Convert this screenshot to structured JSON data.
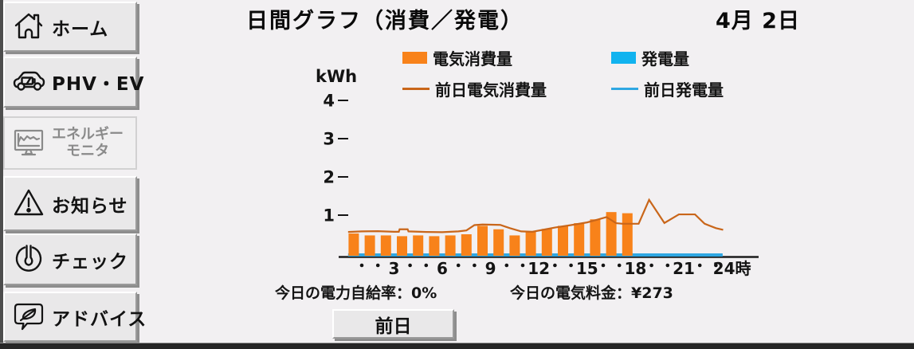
{
  "header": {
    "title": "日間グラフ（消費／発電）",
    "date": "4月 2日"
  },
  "sidebar": {
    "items": [
      {
        "label": "ホーム",
        "icon": "home-icon",
        "selected": false
      },
      {
        "label": "PHV・EV",
        "icon": "phv-ev-car-icon",
        "selected": false
      },
      {
        "label": "エネルギー",
        "label2": "モニタ",
        "icon": "energy-monitor-icon",
        "selected": true
      },
      {
        "label": "お知らせ",
        "icon": "notice-alert-icon",
        "selected": false
      },
      {
        "label": "チェック",
        "icon": "check-gauge-icon",
        "selected": false
      },
      {
        "label": "アドバイス",
        "icon": "advice-leaf-icon",
        "selected": false
      }
    ]
  },
  "stats": {
    "self_sufficiency_label": "今日の電力自給率：",
    "self_sufficiency_value": "0%",
    "electricity_cost_label": "今日の電気料金：",
    "electricity_cost_value": "¥273"
  },
  "controls": {
    "previous_day": "前日"
  },
  "chart_data": {
    "type": "bar+line",
    "title": "日間グラフ（消費／発電）",
    "ylabel": "kWh",
    "ylim": [
      0,
      4.5
    ],
    "yticks": [
      1,
      2,
      3,
      4
    ],
    "xrange": [
      0,
      24
    ],
    "xticks": [
      3,
      6,
      9,
      12,
      15,
      18,
      21,
      24
    ],
    "xtick_suffix": "時",
    "legend_position": "top",
    "grid": false,
    "series": [
      {
        "name": "電気消費量",
        "type": "bar",
        "color": "#F8821A",
        "hours": [
          1,
          2,
          3,
          4,
          5,
          6,
          7,
          8,
          9,
          10,
          11,
          12,
          13,
          14,
          15,
          16,
          17,
          18
        ],
        "values": [
          0.52,
          0.47,
          0.47,
          0.45,
          0.47,
          0.45,
          0.47,
          0.5,
          0.72,
          0.63,
          0.47,
          0.57,
          0.64,
          0.72,
          0.79,
          0.89,
          1.08,
          1.05
        ]
      },
      {
        "name": "発電量",
        "type": "bar",
        "color": "#11B3EF",
        "hours": [
          1,
          2,
          3,
          4,
          5,
          6,
          7,
          8,
          9,
          10,
          11,
          12,
          13,
          14,
          15,
          16,
          17,
          18
        ],
        "values": [
          0,
          0,
          0,
          0,
          0,
          0,
          0,
          0,
          0,
          0,
          0,
          0,
          0,
          0,
          0,
          0,
          0,
          0
        ]
      },
      {
        "name": "前日電気消費量",
        "type": "line",
        "color": "#C9661A",
        "points": [
          [
            0.15,
            0.56
          ],
          [
            1,
            0.575
          ],
          [
            2,
            0.58
          ],
          [
            3,
            0.565
          ],
          [
            3.3,
            0.565
          ],
          [
            3.35,
            0.63
          ],
          [
            3.85,
            0.63
          ],
          [
            3.9,
            0.575
          ],
          [
            5,
            0.56
          ],
          [
            6,
            0.555
          ],
          [
            7,
            0.575
          ],
          [
            7.5,
            0.6
          ],
          [
            8,
            0.74
          ],
          [
            8.5,
            0.755
          ],
          [
            9.6,
            0.745
          ],
          [
            10.2,
            0.66
          ],
          [
            10.9,
            0.575
          ],
          [
            11.6,
            0.565
          ],
          [
            12.3,
            0.62
          ],
          [
            13,
            0.675
          ],
          [
            14,
            0.74
          ],
          [
            15,
            0.81
          ],
          [
            15.7,
            0.89
          ],
          [
            16.2,
            0.95
          ],
          [
            16.8,
            0.79
          ],
          [
            17.2,
            0.775
          ],
          [
            18.2,
            0.775
          ],
          [
            18.85,
            1.4
          ],
          [
            19.8,
            0.795
          ],
          [
            20.7,
            1.02
          ],
          [
            21.7,
            1.02
          ],
          [
            22.3,
            0.775
          ],
          [
            23,
            0.66
          ],
          [
            23.45,
            0.615
          ]
        ]
      },
      {
        "name": "前日発電量",
        "type": "line",
        "color": "#2FA7E2",
        "points": [
          [
            0.15,
            0
          ],
          [
            23.42,
            0
          ]
        ]
      }
    ]
  }
}
